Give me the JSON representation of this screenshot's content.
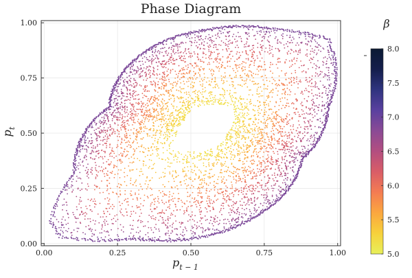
{
  "chart_data": {
    "type": "scatter",
    "title": "Phase Diagram",
    "xlabel": "p",
    "xlabel_sub": "t − 1",
    "ylabel": "p",
    "ylabel_sub": "t",
    "xlim": [
      -0.01,
      1.01
    ],
    "ylim": [
      -0.01,
      1.01
    ],
    "x_ticks": [
      0.0,
      0.25,
      0.5,
      0.75,
      1.0
    ],
    "x_tick_labels": [
      "0.00",
      "0.25",
      "0.50",
      "0.75",
      "1.00"
    ],
    "y_ticks": [
      0.0,
      0.25,
      0.5,
      0.75,
      1.0
    ],
    "y_tick_labels": [
      "0.00",
      "0.25",
      "0.50",
      "0.75",
      "1.00"
    ],
    "grid": true,
    "colorbar": {
      "label": "β",
      "range": [
        5.0,
        8.0
      ],
      "ticks": [
        5.0,
        5.5,
        6.0,
        6.5,
        7.0,
        7.5,
        8.0
      ],
      "tick_labels": [
        "5.0",
        "5.5",
        "6.0",
        "6.5",
        "7.0",
        "7.5",
        "8.0"
      ],
      "colors": [
        "#e8f05a",
        "#f7d13b",
        "#fba73f",
        "#f47c52",
        "#d95d67",
        "#b34e80",
        "#8a4a95",
        "#5a409f",
        "#2f347f",
        "#141e4c",
        "#0b1a33"
      ]
    },
    "series": [
      {
        "description_center": [
          0.55,
          0.53
        ],
        "beta_range": [
          5.0,
          6.9
        ],
        "outer_boundary": [
          [
            0.02,
            0.1
          ],
          [
            0.1,
            0.32
          ],
          [
            0.22,
            0.62
          ],
          [
            0.38,
            0.9
          ],
          [
            0.55,
            0.97
          ],
          [
            0.8,
            0.97
          ],
          [
            0.97,
            0.93
          ],
          [
            0.97,
            0.62
          ],
          [
            0.88,
            0.38
          ],
          [
            0.72,
            0.12
          ],
          [
            0.55,
            0.03
          ],
          [
            0.3,
            0.02
          ],
          [
            0.05,
            0.03
          ]
        ]
      }
    ]
  }
}
